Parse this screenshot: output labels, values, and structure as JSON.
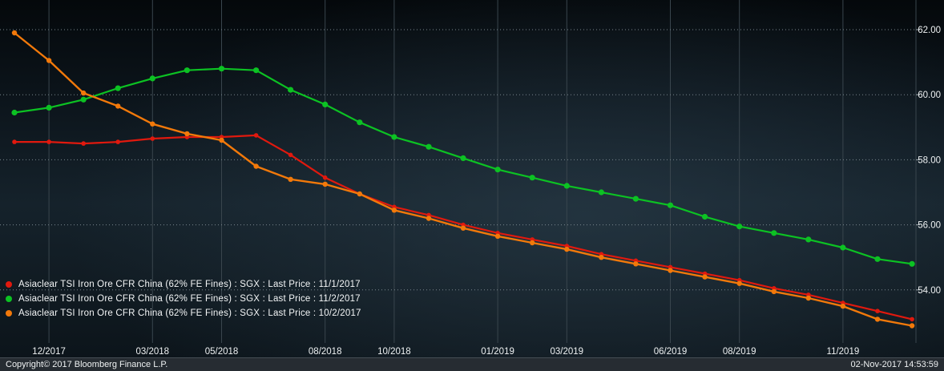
{
  "statusbar": {
    "copyright": "Copyright© 2017 Bloomberg Finance L.P.",
    "timestamp": "02-Nov-2017 14:53:59"
  },
  "legend": {
    "items": [
      {
        "label": "Asiaclear TSI Iron Ore CFR China (62% FE Fines) : SGX : Last Price : 11/1/2017",
        "color": "#e0190e"
      },
      {
        "label": "Asiaclear TSI Iron Ore CFR China (62% FE Fines) : SGX : Last Price : 11/2/2017",
        "color": "#0cc223"
      },
      {
        "label": "Asiaclear TSI Iron Ore CFR China (62% FE Fines) : SGX : Last Price : 10/2/2017",
        "color": "#f2790a"
      }
    ]
  },
  "chart_data": {
    "type": "line",
    "categories": [
      "11/2017",
      "12/2017",
      "01/2018",
      "02/2018",
      "03/2018",
      "04/2018",
      "05/2018",
      "06/2018",
      "07/2018",
      "08/2018",
      "09/2018",
      "10/2018",
      "11/2018",
      "12/2018",
      "01/2019",
      "02/2019",
      "03/2019",
      "04/2019",
      "05/2019",
      "06/2019",
      "07/2019",
      "08/2019",
      "09/2019",
      "10/2019",
      "11/2019",
      "12/2019",
      "01/2020"
    ],
    "series": [
      {
        "name": "Asiaclear TSI Iron Ore CFR China (62% FE Fines) : SGX : Last Price : 11/1/2017",
        "color": "#e0190e",
        "values": [
          58.55,
          58.55,
          58.5,
          58.55,
          58.65,
          58.7,
          58.7,
          58.75,
          58.15,
          57.45,
          56.95,
          56.55,
          56.3,
          56.0,
          55.75,
          55.55,
          55.35,
          55.1,
          54.9,
          54.7,
          54.5,
          54.3,
          54.05,
          53.85,
          53.6,
          53.35,
          53.1
        ]
      },
      {
        "name": "Asiaclear TSI Iron Ore CFR China (62% FE Fines) : SGX : Last Price : 11/2/2017",
        "color": "#0cc223",
        "values": [
          59.45,
          59.6,
          59.85,
          60.2,
          60.5,
          60.75,
          60.8,
          60.75,
          60.15,
          59.7,
          59.15,
          58.7,
          58.4,
          58.05,
          57.7,
          57.45,
          57.2,
          57.0,
          56.8,
          56.6,
          56.25,
          55.95,
          55.75,
          55.55,
          55.3,
          54.95,
          54.8
        ]
      },
      {
        "name": "Asiaclear TSI Iron Ore CFR China (62% FE Fines) : SGX : Last Price : 10/2/2017",
        "color": "#f2790a",
        "values": [
          61.9,
          61.05,
          60.05,
          59.65,
          59.1,
          58.8,
          58.6,
          57.8,
          57.4,
          57.25,
          56.95,
          56.45,
          56.2,
          55.9,
          55.65,
          55.45,
          55.25,
          55.0,
          54.8,
          54.6,
          54.4,
          54.2,
          53.95,
          53.75,
          53.5,
          53.1,
          52.9
        ]
      }
    ],
    "x_ticks": [
      {
        "index": 1,
        "label": "12/2017"
      },
      {
        "index": 4,
        "label": "03/2018"
      },
      {
        "index": 6,
        "label": "05/2018"
      },
      {
        "index": 9,
        "label": "08/2018"
      },
      {
        "index": 11,
        "label": "10/2018"
      },
      {
        "index": 14,
        "label": "01/2019"
      },
      {
        "index": 16,
        "label": "03/2019"
      },
      {
        "index": 19,
        "label": "06/2019"
      },
      {
        "index": 21,
        "label": "08/2019"
      },
      {
        "index": 24,
        "label": "11/2019"
      }
    ],
    "y_ticks": [
      62,
      60,
      58,
      56,
      54
    ],
    "y_tick_labels": [
      "62.00",
      "60.00",
      "58.00",
      "56.00",
      "54.00"
    ],
    "ylim": [
      52.4,
      62.9
    ],
    "title": "",
    "grid": {
      "horizontal": "dotted",
      "vertical": "solid"
    },
    "legend_position": "bottom-left"
  }
}
